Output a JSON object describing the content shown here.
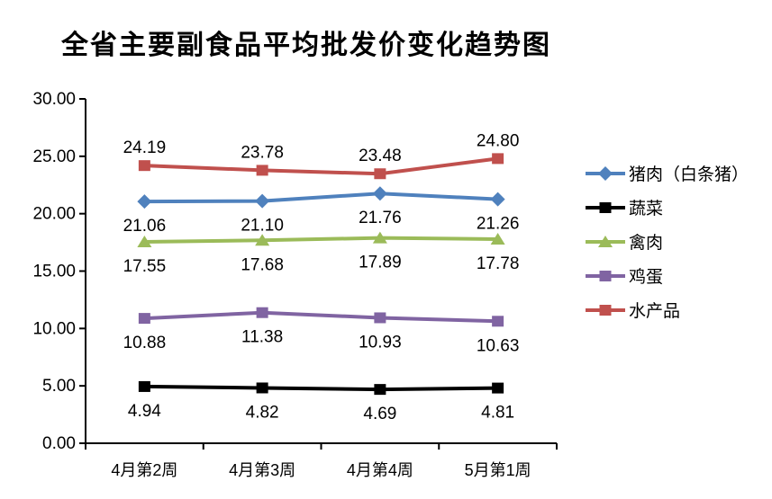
{
  "chart_data": {
    "type": "line",
    "title": "全省主要副食品平均批发价变化趋势图",
    "categories": [
      "4月第2周",
      "4月第3周",
      "4月第4周",
      "5月第1周"
    ],
    "series": [
      {
        "name": "猪肉（白条猪）",
        "values": [
          21.06,
          21.1,
          21.76,
          21.26
        ],
        "color": "#4F81BD",
        "marker": "diamond",
        "label_position": "below"
      },
      {
        "name": "蔬菜",
        "values": [
          4.94,
          4.82,
          4.69,
          4.81
        ],
        "color": "#000000",
        "marker": "square",
        "label_position": "below"
      },
      {
        "name": "禽肉",
        "values": [
          17.55,
          17.68,
          17.89,
          17.78
        ],
        "color": "#9BBB59",
        "marker": "triangle",
        "label_position": "below"
      },
      {
        "name": "鸡蛋",
        "values": [
          10.88,
          11.38,
          10.93,
          10.63
        ],
        "color": "#8064A2",
        "marker": "square",
        "label_position": "below"
      },
      {
        "name": "水产品",
        "values": [
          24.19,
          23.78,
          23.48,
          24.8
        ],
        "color": "#C0504D",
        "marker": "square",
        "label_position": "above"
      }
    ],
    "y_ticks": [
      "30.00",
      "25.00",
      "20.00",
      "15.00",
      "10.00",
      "5.00",
      "0.00"
    ],
    "ylim": [
      0,
      30
    ],
    "y_tick_step": 5,
    "xlabel": "",
    "ylabel": "",
    "grid": false,
    "legend_position": "right",
    "colors": {
      "axis": "#000000",
      "text": "#000000",
      "background": "#ffffff"
    }
  }
}
